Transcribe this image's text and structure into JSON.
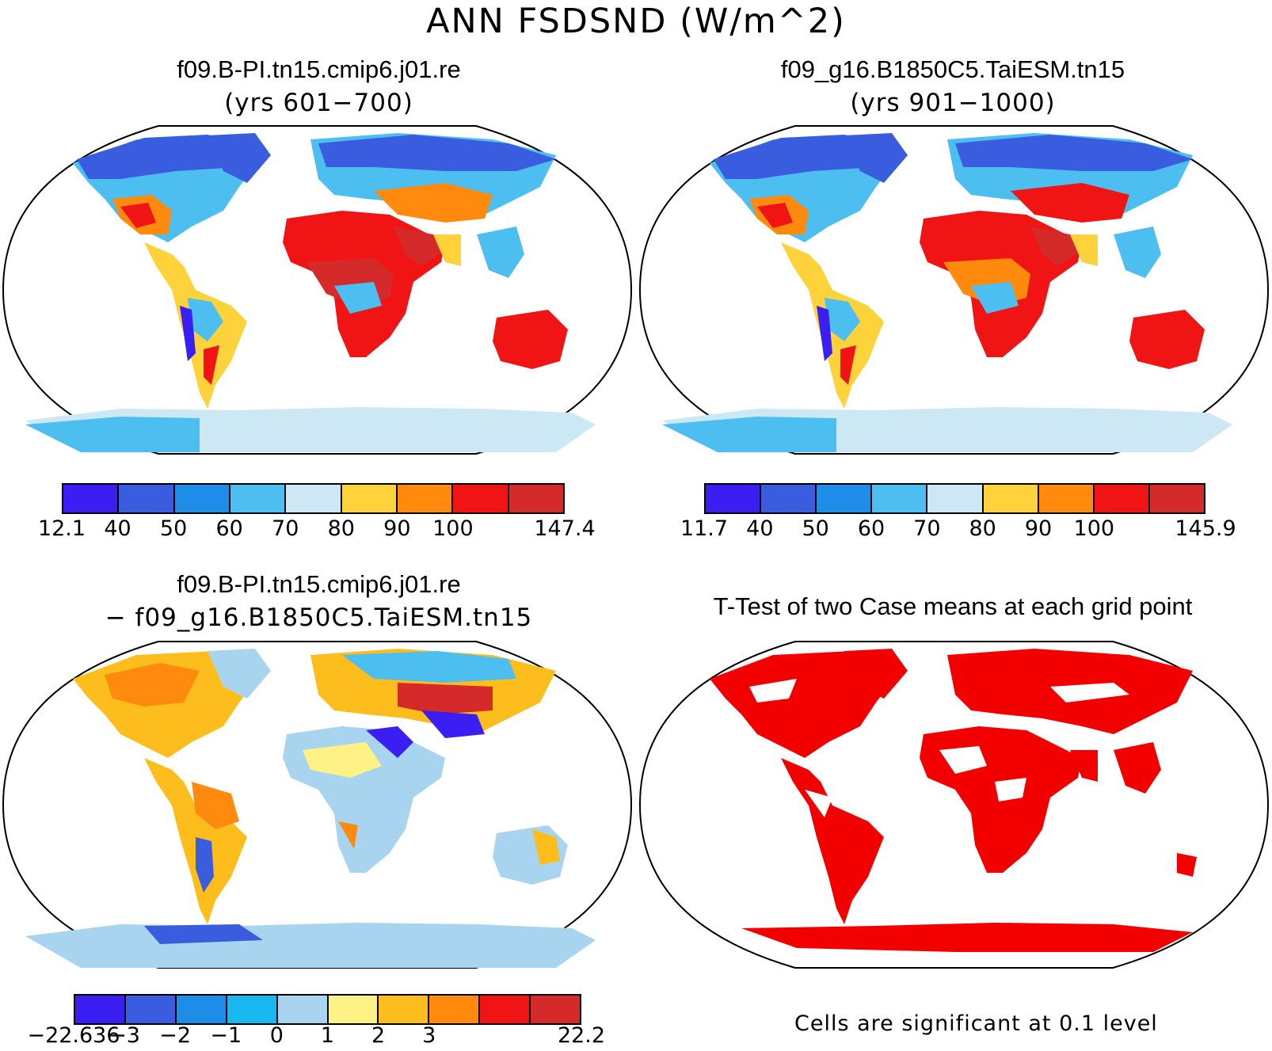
{
  "figure": {
    "title": "ANN FSDSND (W/m^2)"
  },
  "panels": [
    {
      "id": "p1",
      "title": "f09.B-PI.tn15.cmip6.j01.re",
      "subtitle": "(yrs 601−700)",
      "colorbar": {
        "colors": [
          "#3a1ef2",
          "#3a5de0",
          "#1e8de8",
          "#4dbef0",
          "#cde8f5",
          "#fed23a",
          "#ff8a0e",
          "#f01414",
          "#d42a2a"
        ],
        "labels": [
          "12.1",
          "40",
          "50",
          "60",
          "70",
          "80",
          "90",
          "100",
          "147.4"
        ]
      }
    },
    {
      "id": "p2",
      "title": "f09_g16.B1850C5.TaiESM.tn15",
      "subtitle": "(yrs 901−1000)",
      "colorbar": {
        "colors": [
          "#3a1ef2",
          "#3a5de0",
          "#1e8de8",
          "#4dbef0",
          "#cde8f5",
          "#fed23a",
          "#ff8a0e",
          "#f01414",
          "#d42a2a"
        ],
        "labels": [
          "11.7",
          "40",
          "50",
          "60",
          "70",
          "80",
          "90",
          "100",
          "145.9"
        ]
      }
    },
    {
      "id": "p3",
      "title": "f09.B-PI.tn15.cmip6.j01.re",
      "subtitle": "− f09_g16.B1850C5.TaiESM.tn15",
      "colorbar": {
        "colors": [
          "#3a1ef2",
          "#3a5de0",
          "#1e8de8",
          "#1ab8f0",
          "#a8d4ef",
          "#fef286",
          "#fdbd1c",
          "#ff8a0e",
          "#f01414",
          "#d42a2a"
        ],
        "labels": [
          "−22.636",
          "−3",
          "−2",
          "−1",
          "0",
          "1",
          "2",
          "3",
          "22.2"
        ]
      }
    },
    {
      "id": "p4",
      "title": "T-Test of two Case means at each grid point",
      "note": "Cells are significant at 0.1 level"
    }
  ],
  "legend_colors": {
    "significant": "#f20000",
    "ocean": "#ffffff",
    "coast": "#000000"
  }
}
